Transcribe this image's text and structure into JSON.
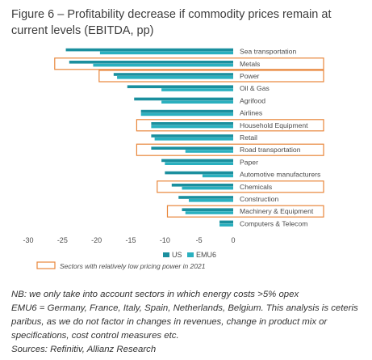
{
  "title": "Figure 6 – Profitability decrease if commodity prices remain at current levels (EBITDA, pp)",
  "colors": {
    "us": "#1a8f9e",
    "emu6": "#2ab0bf",
    "highlight": "#e8863a",
    "text": "#4a4a4a"
  },
  "chart_data": {
    "type": "bar",
    "orientation": "horizontal",
    "categories": [
      "Sea transportation",
      "Metals",
      "Power",
      "Oil & Gas",
      "Agrifood",
      "Airlines",
      "Household Equipment",
      "Retail",
      "Road transportation",
      "Paper",
      "Automotive manufacturers",
      "Chemicals",
      "Construction",
      "Machinery & Equipment",
      "Computers & Telecom"
    ],
    "series": [
      {
        "name": "US",
        "values": [
          -24.5,
          -24.0,
          -17.5,
          -15.5,
          -14.5,
          -13.5,
          -12.0,
          -12.0,
          -12.0,
          -10.5,
          -10.0,
          -9.0,
          -8.0,
          -7.5,
          -2.0
        ]
      },
      {
        "name": "EMU6",
        "values": [
          -19.5,
          -20.5,
          -17.0,
          -10.5,
          -10.5,
          -13.5,
          -12.0,
          -11.5,
          -7.0,
          -10.0,
          -4.5,
          -7.5,
          -6.5,
          -7.0,
          -2.0
        ]
      }
    ],
    "xlim": [
      -30,
      0
    ],
    "xticks": [
      "-30",
      "-25",
      "-20",
      "-15",
      "-10",
      "-5",
      "0"
    ],
    "highlighted": [
      "Metals",
      "Power",
      "Household Equipment",
      "Road transportation",
      "Chemicals",
      "Machinery & Equipment"
    ],
    "legend_position": "bottom",
    "highlight_legend": "Sectors with relatively low pricing power in 2021",
    "grid": false
  },
  "notes": [
    "NB: we only take into account sectors in which energy costs >5% opex",
    "EMU6 = Germany, France, Italy, Spain, Netherlands, Belgium. This analysis is ceteris",
    "paribus, as we do not factor in changes in revenues, change in product mix or",
    "specifications, cost control measures etc.",
    "Sources: Refinitiv, Allianz Research"
  ]
}
